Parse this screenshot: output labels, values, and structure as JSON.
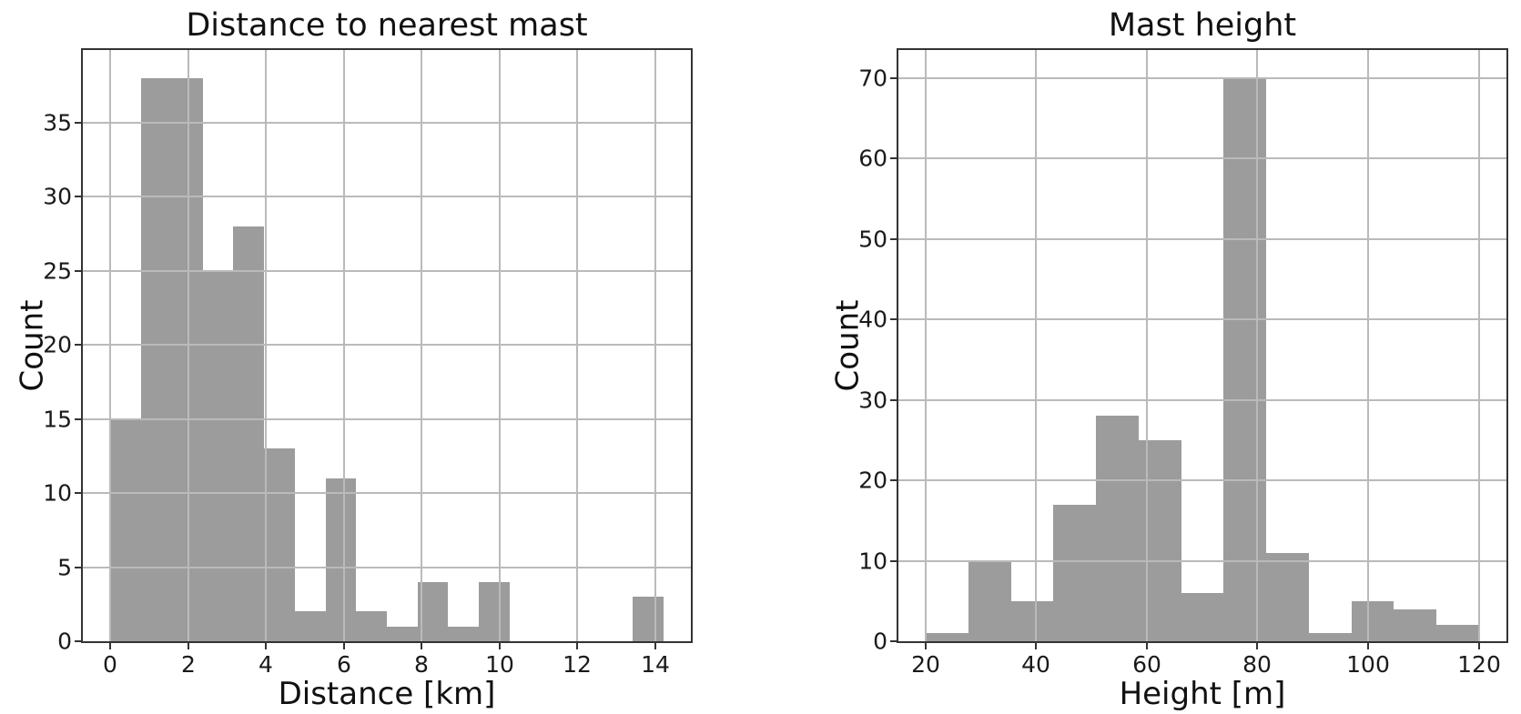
{
  "figure": {
    "background": "#ffffff",
    "bar_color": "#9c9c9c",
    "grid_color": "#bababa",
    "spine_color": "#333333",
    "text_color": "#1a1a1a"
  },
  "chart_data": [
    {
      "type": "bar",
      "subtype": "histogram",
      "title": "Distance to nearest mast",
      "xlabel": "Distance [km]",
      "ylabel": "Count",
      "bin_edges": [
        0,
        0.79,
        1.58,
        2.37,
        3.16,
        3.95,
        4.74,
        5.53,
        6.32,
        7.11,
        7.89,
        8.68,
        9.47,
        10.26,
        11.05,
        11.84,
        12.63,
        13.42,
        14.21
      ],
      "values": [
        15,
        38,
        38,
        25,
        28,
        13,
        2,
        11,
        2,
        1,
        4,
        1,
        4,
        0,
        0,
        0,
        0,
        3
      ],
      "xticks": [
        0,
        2,
        4,
        6,
        8,
        10,
        12,
        14
      ],
      "yticks": [
        0,
        5,
        10,
        15,
        20,
        25,
        30,
        35
      ],
      "xlim": [
        -0.71,
        14.92
      ],
      "ylim": [
        0,
        39.9
      ],
      "grid": true,
      "legend": null
    },
    {
      "type": "bar",
      "subtype": "histogram",
      "title": "Mast height",
      "xlabel": "Height [m]",
      "ylabel": "Count",
      "bin_edges": [
        20.1,
        27.78,
        35.47,
        43.15,
        50.84,
        58.52,
        66.21,
        73.89,
        81.58,
        89.26,
        96.95,
        104.63,
        112.32,
        120.0
      ],
      "values": [
        1,
        10,
        5,
        17,
        28,
        25,
        6,
        70,
        11,
        1,
        5,
        4,
        2
      ],
      "xticks": [
        20,
        40,
        60,
        80,
        100,
        120
      ],
      "yticks": [
        0,
        10,
        20,
        30,
        40,
        50,
        60,
        70
      ],
      "xlim": [
        15.1,
        125.0
      ],
      "ylim": [
        0,
        73.5
      ],
      "grid": true,
      "legend": null
    }
  ]
}
